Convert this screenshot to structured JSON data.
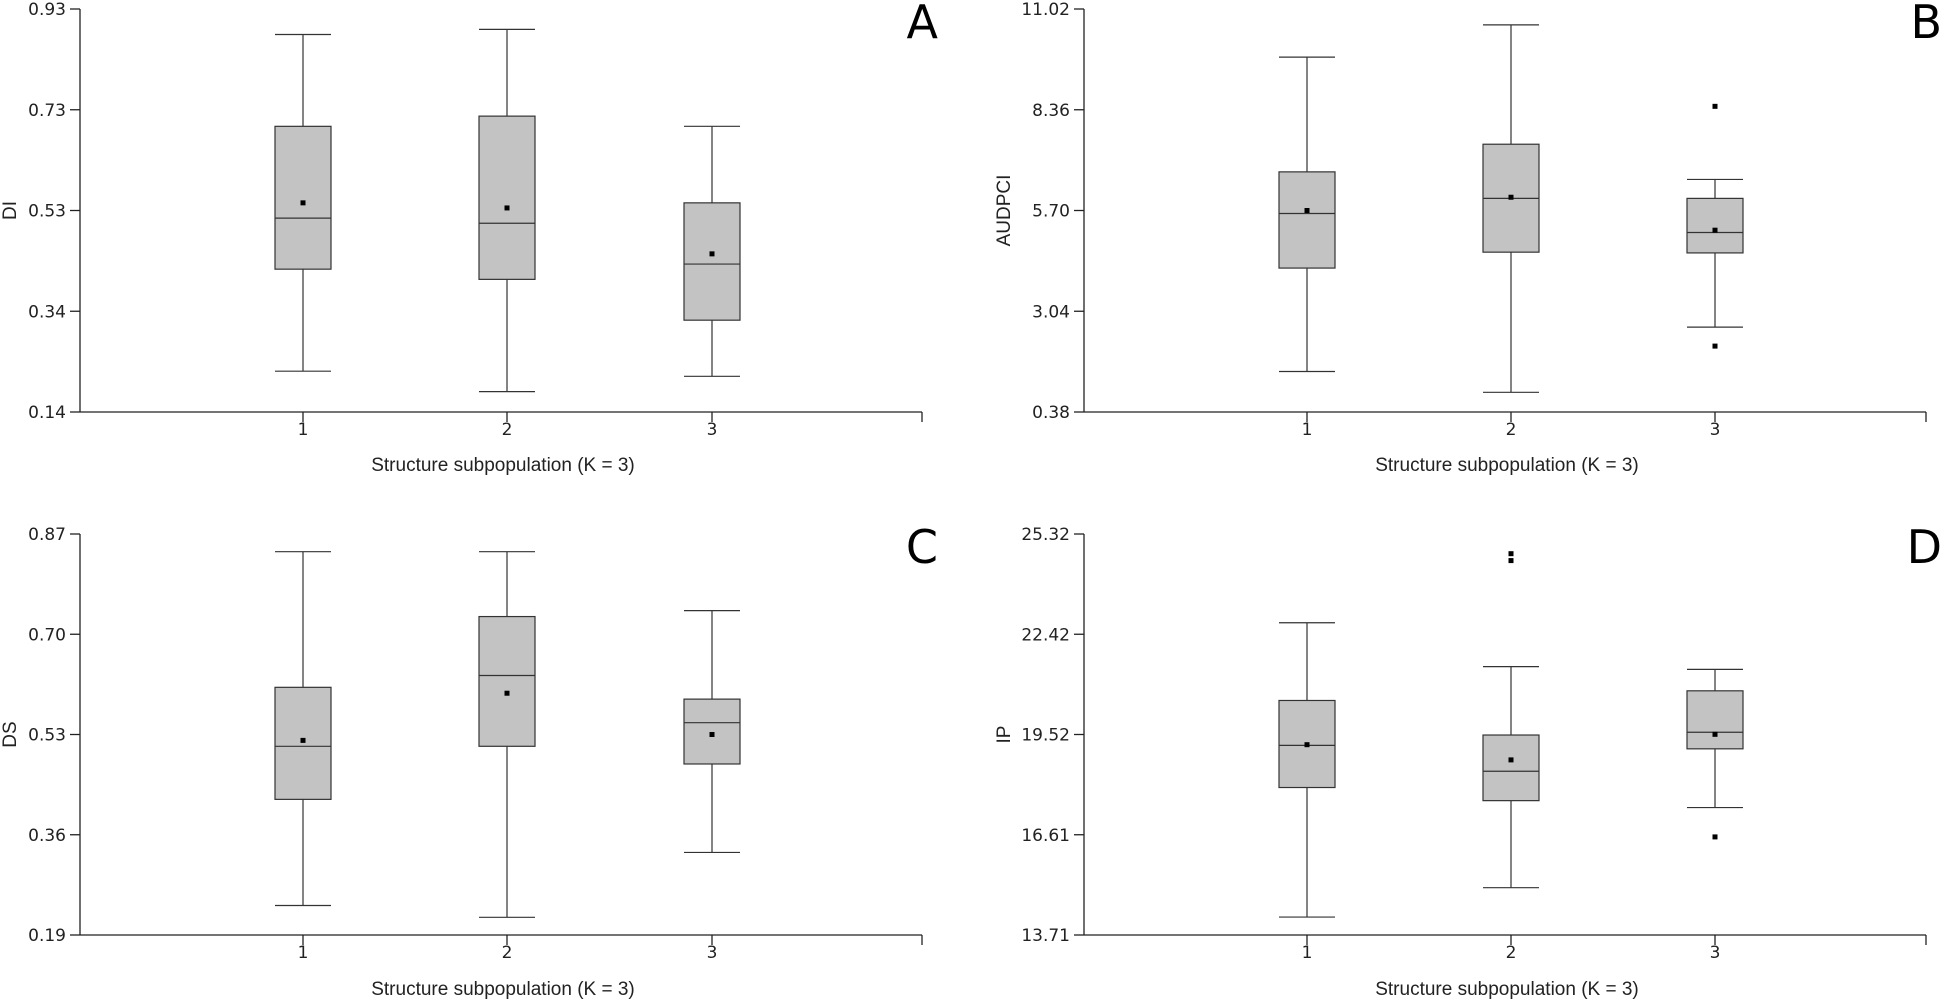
{
  "chart_data": [
    {
      "type": "boxplot",
      "panel_label": "A",
      "ylabel": "DI",
      "xlabel": "Structure subpopulation (K = 3)",
      "categories": [
        "1",
        "2",
        "3"
      ],
      "yticks": [
        "0.14",
        "0.34",
        "0.53",
        "0.73",
        "0.93"
      ],
      "ylim": [
        0.14,
        0.93
      ],
      "boxes": [
        {
          "category": "1",
          "whisker_low": 0.22,
          "q1": 0.42,
          "median": 0.52,
          "q3": 0.7,
          "whisker_high": 0.88,
          "mean": 0.55,
          "outliers": []
        },
        {
          "category": "2",
          "whisker_low": 0.18,
          "q1": 0.4,
          "median": 0.51,
          "q3": 0.72,
          "whisker_high": 0.89,
          "mean": 0.54,
          "outliers": []
        },
        {
          "category": "3",
          "whisker_low": 0.21,
          "q1": 0.32,
          "median": 0.43,
          "q3": 0.55,
          "whisker_high": 0.7,
          "mean": 0.45,
          "outliers": []
        }
      ]
    },
    {
      "type": "boxplot",
      "panel_label": "B",
      "ylabel": "AUDPCI",
      "xlabel": "Structure subpopulation (K = 3)",
      "categories": [
        "1",
        "2",
        "3"
      ],
      "yticks": [
        "0.38",
        "3.04",
        "5.70",
        "8.36",
        "11.02"
      ],
      "ylim": [
        0.38,
        11.02
      ],
      "boxes": [
        {
          "category": "1",
          "whisker_low": 1.45,
          "q1": 4.18,
          "median": 5.62,
          "q3": 6.72,
          "whisker_high": 9.75,
          "mean": 5.7,
          "outliers": []
        },
        {
          "category": "2",
          "whisker_low": 0.9,
          "q1": 4.6,
          "median": 6.02,
          "q3": 7.45,
          "whisker_high": 10.6,
          "mean": 6.05,
          "outliers": []
        },
        {
          "category": "3",
          "whisker_low": 2.62,
          "q1": 4.58,
          "median": 5.12,
          "q3": 6.02,
          "whisker_high": 6.52,
          "mean": 5.18,
          "outliers": [
            8.45,
            2.12
          ]
        }
      ]
    },
    {
      "type": "boxplot",
      "panel_label": "C",
      "ylabel": "DS",
      "xlabel": "Structure subpopulation (K = 3)",
      "categories": [
        "1",
        "2",
        "3"
      ],
      "yticks": [
        "0.19",
        "0.36",
        "0.53",
        "0.70",
        "0.87"
      ],
      "ylim": [
        0.19,
        0.87
      ],
      "boxes": [
        {
          "category": "1",
          "whisker_low": 0.24,
          "q1": 0.42,
          "median": 0.51,
          "q3": 0.61,
          "whisker_high": 0.84,
          "mean": 0.52,
          "outliers": []
        },
        {
          "category": "2",
          "whisker_low": 0.22,
          "q1": 0.51,
          "median": 0.63,
          "q3": 0.73,
          "whisker_high": 0.84,
          "mean": 0.6,
          "outliers": []
        },
        {
          "category": "3",
          "whisker_low": 0.33,
          "q1": 0.48,
          "median": 0.55,
          "q3": 0.59,
          "whisker_high": 0.74,
          "mean": 0.53,
          "outliers": []
        }
      ]
    },
    {
      "type": "boxplot",
      "panel_label": "D",
      "ylabel": "IP",
      "xlabel": "Structure subpopulation (K = 3)",
      "categories": [
        "1",
        "2",
        "3"
      ],
      "yticks": [
        "13.71",
        "16.61",
        "19.52",
        "22.42",
        "25.32"
      ],
      "ylim": [
        13.71,
        25.32
      ],
      "boxes": [
        {
          "category": "1",
          "whisker_low": 14.23,
          "q1": 17.98,
          "median": 19.2,
          "q3": 20.5,
          "whisker_high": 22.75,
          "mean": 19.22,
          "outliers": []
        },
        {
          "category": "2",
          "whisker_low": 15.08,
          "q1": 17.6,
          "median": 18.45,
          "q3": 19.5,
          "whisker_high": 21.48,
          "mean": 18.78,
          "outliers": [
            24.75,
            24.55
          ]
        },
        {
          "category": "3",
          "whisker_low": 17.4,
          "q1": 19.1,
          "median": 19.58,
          "q3": 20.78,
          "whisker_high": 21.4,
          "mean": 19.52,
          "outliers": [
            16.55
          ]
        }
      ]
    }
  ]
}
